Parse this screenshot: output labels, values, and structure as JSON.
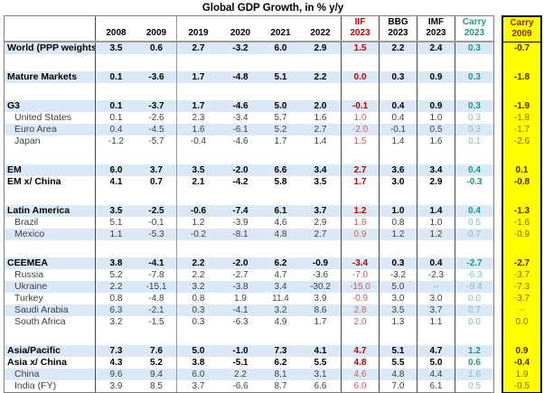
{
  "chart_data": {
    "type": "table",
    "title": "Global GDP Growth, in % y/y",
    "headers": [
      {
        "top": "",
        "bottom": "2008"
      },
      {
        "top": "",
        "bottom": "2009"
      },
      {
        "top": "",
        "bottom": "2019"
      },
      {
        "top": "",
        "bottom": "2020"
      },
      {
        "top": "",
        "bottom": "2021"
      },
      {
        "top": "",
        "bottom": "2022"
      },
      {
        "top": "IIF",
        "bottom": "2023"
      },
      {
        "top": "BBG",
        "bottom": "2023"
      },
      {
        "top": "IMF",
        "bottom": "2023"
      },
      {
        "top": "Carry",
        "bottom": "2023"
      }
    ],
    "carry_header": {
      "top": "Carry",
      "bottom": "2009"
    },
    "colors": {
      "iif_red": "#c00000",
      "carry_teal": "#1e987c",
      "carry09_maroon": "#8a2a18",
      "carry09_yellow": "#ffff00",
      "row_stripe_blue": "#dbe9f6"
    },
    "rows": [
      {
        "label": "World (PPP weights)",
        "bold": true,
        "shade": true,
        "gap": false,
        "values": [
          "3.5",
          "0.6",
          "2.7",
          "-3.2",
          "6.0",
          "2.9",
          "1.5",
          "2.2",
          "2.4",
          "0.3"
        ],
        "carry09": "-0.7"
      },
      {
        "label": "Mature Markets",
        "bold": true,
        "shade": true,
        "gap": true,
        "values": [
          "0.1",
          "-3.6",
          "1.7",
          "-4.8",
          "5.1",
          "2.2",
          "0.0",
          "0.3",
          "0.9",
          "0.3"
        ],
        "carry09": "-1.8"
      },
      {
        "label": "G3",
        "bold": true,
        "shade": true,
        "gap": true,
        "values": [
          "0.1",
          "-3.7",
          "1.7",
          "-4.6",
          "5.0",
          "2.0",
          "-0.1",
          "0.4",
          "0.9",
          "0.3"
        ],
        "carry09": "-1.9"
      },
      {
        "label": "United States",
        "bold": false,
        "shade": false,
        "gap": false,
        "values": [
          "0.1",
          "-2.6",
          "2.3",
          "-3.4",
          "5.7",
          "1.6",
          "1.0",
          "0.4",
          "1.0",
          "0.3"
        ],
        "carry09": "-1.8"
      },
      {
        "label": "Euro Area",
        "bold": false,
        "shade": true,
        "gap": false,
        "values": [
          "0.4",
          "-4.5",
          "1.6",
          "-6.1",
          "5.2",
          "2.7",
          "-2.0",
          "-0.1",
          "0.5",
          "0.3"
        ],
        "carry09": "-1.7"
      },
      {
        "label": "Japan",
        "bold": false,
        "shade": false,
        "gap": false,
        "values": [
          "-1.2",
          "-5.7",
          "-0.4",
          "-4.6",
          "1.7",
          "1.4",
          "1.5",
          "1.4",
          "1.6",
          "0.1"
        ],
        "carry09": "-2.6"
      },
      {
        "label": "EM",
        "bold": true,
        "shade": true,
        "gap": true,
        "values": [
          "6.0",
          "3.7",
          "3.5",
          "-2.0",
          "6.6",
          "3.4",
          "2.7",
          "3.6",
          "3.4",
          "0.4"
        ],
        "carry09": "0.1"
      },
      {
        "label": "EM x/ China",
        "bold": true,
        "shade": false,
        "gap": false,
        "values": [
          "4.1",
          "0.7",
          "2.1",
          "-4.2",
          "5.8",
          "3.5",
          "1.7",
          "3.0",
          "2.9",
          "-0.3"
        ],
        "carry09": "-0.8"
      },
      {
        "label": "Latin America",
        "bold": true,
        "shade": true,
        "gap": true,
        "values": [
          "3.5",
          "-2.5",
          "-0.6",
          "-7.4",
          "6.1",
          "3.7",
          "1.2",
          "1.0",
          "1.4",
          "0.4"
        ],
        "carry09": "-1.3"
      },
      {
        "label": "Brazil",
        "bold": false,
        "shade": false,
        "gap": false,
        "values": [
          "5.1",
          "-0.1",
          "1.2",
          "-3.9",
          "4.6",
          "2.9",
          "1.8",
          "0.8",
          "1.0",
          "0.5"
        ],
        "carry09": "-1.6"
      },
      {
        "label": "Mexico",
        "bold": false,
        "shade": true,
        "gap": false,
        "values": [
          "1.1",
          "-5.3",
          "-0.2",
          "-8.1",
          "4.8",
          "2.7",
          "0.9",
          "1.2",
          "1.2",
          "0.7"
        ],
        "carry09": "-0.9"
      },
      {
        "label": "CEEMEA",
        "bold": true,
        "shade": true,
        "gap": true,
        "values": [
          "3.8",
          "-4.1",
          "2.2",
          "-2.0",
          "6.2",
          "-0.9",
          "-3.4",
          "0.3",
          "0.4",
          "-2.7"
        ],
        "carry09": "-2.7"
      },
      {
        "label": "Russia",
        "bold": false,
        "shade": false,
        "gap": false,
        "values": [
          "5.2",
          "-7.8",
          "2.2",
          "-2.7",
          "4.7",
          "-3.6",
          "-7.0",
          "-3.2",
          "-2.3",
          "-6.3"
        ],
        "carry09": "-3.7"
      },
      {
        "label": "Ukraine",
        "bold": false,
        "shade": true,
        "gap": false,
        "values": [
          "2.2",
          "-15.1",
          "3.2",
          "-3.8",
          "3.4",
          "-30.2",
          "-15.0",
          "5.0",
          "--",
          "-9.4"
        ],
        "carry09": "-7.3"
      },
      {
        "label": "Turkey",
        "bold": false,
        "shade": false,
        "gap": false,
        "values": [
          "0.8",
          "-4.8",
          "0.8",
          "1.9",
          "11.4",
          "3.9",
          "-0.9",
          "3.0",
          "3.0",
          "0.0"
        ],
        "carry09": "-3.7"
      },
      {
        "label": "Saudi Arabia",
        "bold": false,
        "shade": true,
        "gap": false,
        "values": [
          "6.3",
          "-2.1",
          "0.3",
          "-4.1",
          "3.2",
          "8.6",
          "2.8",
          "3.5",
          "3.7",
          "0.7"
        ],
        "carry09": "--"
      },
      {
        "label": "South Africa",
        "bold": false,
        "shade": false,
        "gap": false,
        "values": [
          "3.2",
          "-1.5",
          "0.3",
          "-6.3",
          "4.9",
          "1.7",
          "2.0",
          "1.3",
          "1.1",
          "0.0"
        ],
        "carry09": "0.0"
      },
      {
        "label": "Asia/Pacific",
        "bold": true,
        "shade": true,
        "gap": true,
        "values": [
          "7.3",
          "7.6",
          "5.0",
          "-1.0",
          "7.3",
          "4.1",
          "4.7",
          "5.1",
          "4.7",
          "1.2"
        ],
        "carry09": "0.9"
      },
      {
        "label": "Asia x/ China",
        "bold": true,
        "shade": false,
        "gap": false,
        "values": [
          "4.3",
          "5.2",
          "3.8",
          "-5.1",
          "6.2",
          "5.5",
          "4.8",
          "5.5",
          "5.0",
          "0.6"
        ],
        "carry09": "-0.4"
      },
      {
        "label": "China",
        "bold": false,
        "shade": true,
        "gap": false,
        "values": [
          "9.6",
          "9.4",
          "6.0",
          "2.2",
          "8.1",
          "3.1",
          "4.6",
          "4.8",
          "4.4",
          "1.6"
        ],
        "carry09": "1.9"
      },
      {
        "label": "India (FY)",
        "bold": false,
        "shade": false,
        "gap": false,
        "values": [
          "3.9",
          "8.5",
          "3.7",
          "-6.6",
          "8.7",
          "6.6",
          "6.0",
          "7.0",
          "6.1",
          "0.5"
        ],
        "carry09": "-0.5"
      }
    ]
  }
}
